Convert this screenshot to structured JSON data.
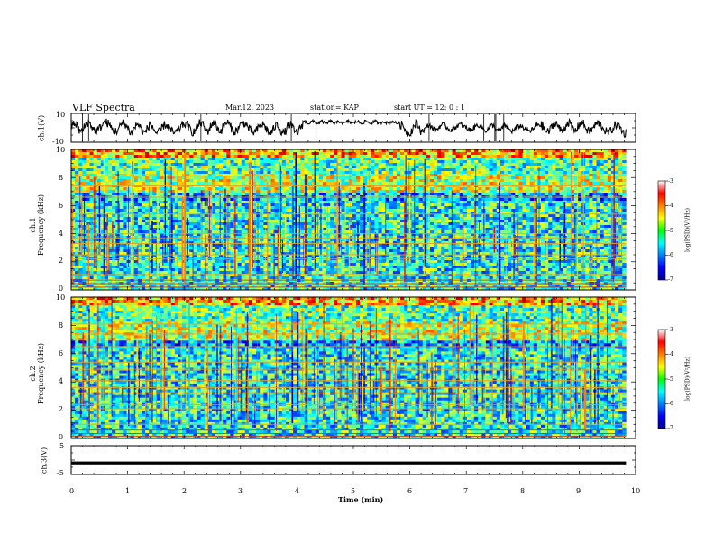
{
  "header": {
    "title": "VLF Spectra",
    "date": "Mar.12, 2023",
    "station": "station= KAP",
    "start_ut": "start  UT  =   12: 0  : 1"
  },
  "chart_data": [
    {
      "type": "line",
      "panel": "ch1-waveform",
      "ylabel": "ch.1(V)",
      "ylim": [
        -10,
        10
      ],
      "y_tick_labels": [
        "10",
        "-10"
      ],
      "x_range_min": [
        0,
        9.83
      ]
    },
    {
      "type": "heatmap",
      "panel": "ch1-spectrogram",
      "ylabel": [
        "ch.1",
        "Frequency (kHz)"
      ],
      "ylim": [
        0,
        10
      ],
      "y_ticks": [
        0,
        2,
        4,
        6,
        8,
        10
      ],
      "y_tick_labels": [
        "0",
        "2",
        "4",
        "6",
        "8",
        "10"
      ],
      "x_range_min": [
        0,
        9.83
      ],
      "horizontal_lines_khz": [
        0.2,
        0.45,
        0.7,
        1.1,
        2.2,
        2.5,
        3.3,
        3.7,
        4.0,
        4.9,
        5.4,
        6.6,
        7.4,
        8.1
      ],
      "colorbar": {
        "label": "log(PSD)(V²/Hz)",
        "range": [
          -7,
          -3
        ],
        "ticks": [
          -3,
          -4,
          -5,
          -6,
          -7
        ],
        "tick_labels": [
          "-3",
          "-4",
          "-5",
          "-6",
          "-7"
        ]
      }
    },
    {
      "type": "heatmap",
      "panel": "ch2-spectrogram",
      "ylabel": [
        "ch.2",
        "Frequency (kHz)"
      ],
      "ylim": [
        0,
        10
      ],
      "y_ticks": [
        0,
        2,
        4,
        6,
        8,
        10
      ],
      "y_tick_labels": [
        "0",
        "2",
        "4",
        "6",
        "8",
        "10"
      ],
      "x_range_min": [
        0,
        9.83
      ],
      "horizontal_lines_khz": [
        0.15,
        0.35,
        0.6,
        1.0,
        2.1,
        2.4,
        3.2,
        3.6,
        4.1,
        4.9,
        5.4,
        6.5,
        7.4,
        8.1
      ],
      "colorbar": {
        "label": "log(PSD)(V²/Hz)",
        "range": [
          -7,
          -3
        ],
        "ticks": [
          -3,
          -4,
          -5,
          -6,
          -7
        ],
        "tick_labels": [
          "-3",
          "-4",
          "-5",
          "-6",
          "-7"
        ]
      }
    },
    {
      "type": "line",
      "panel": "ch3-waveform",
      "ylabel": "ch.3(V)",
      "ylim": [
        -5,
        5
      ],
      "y_tick_labels": [
        "5",
        "-5"
      ],
      "x_range_min": [
        0,
        9.83
      ],
      "value_band": [
        -1.5,
        -0.5
      ]
    }
  ],
  "x_axis": {
    "label": "Time (min)",
    "range": [
      0,
      10
    ],
    "ticks": [
      0,
      1,
      2,
      3,
      4,
      5,
      6,
      7,
      8,
      9,
      10
    ],
    "tick_labels": [
      "0",
      "1",
      "2",
      "3",
      "4",
      "5",
      "6",
      "7",
      "8",
      "9",
      "10"
    ]
  }
}
